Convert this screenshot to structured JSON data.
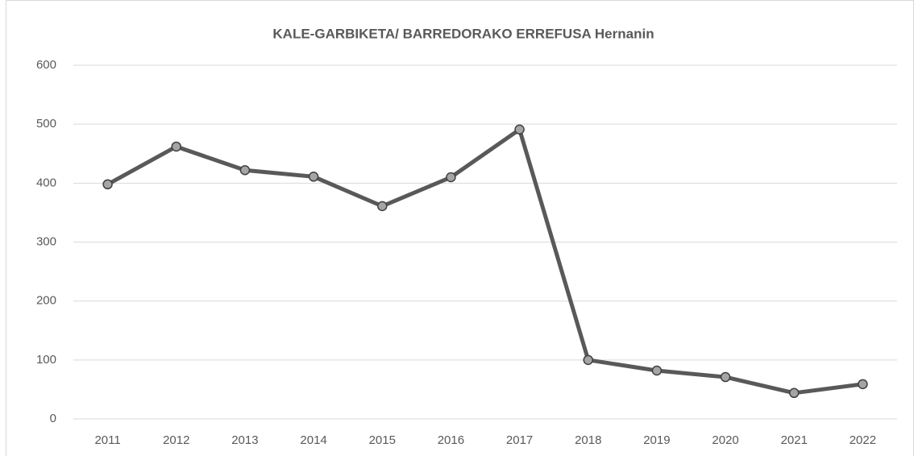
{
  "chart_data": {
    "type": "line",
    "title": "KALE-GARBIKETA/ BARREDORAKO ERREFUSA Hernanin",
    "categories": [
      "2011",
      "2012",
      "2013",
      "2014",
      "2015",
      "2016",
      "2017",
      "2018",
      "2019",
      "2020",
      "2021",
      "2022"
    ],
    "series": [
      {
        "name": "Hernani",
        "color": "#595959",
        "values": [
          398,
          462,
          422,
          411,
          361,
          410,
          491,
          100,
          82,
          71,
          44,
          59
        ]
      }
    ],
    "ylim": [
      0,
      600
    ],
    "yticks": [
      0,
      100,
      200,
      300,
      400,
      500,
      600
    ],
    "grid": true
  }
}
